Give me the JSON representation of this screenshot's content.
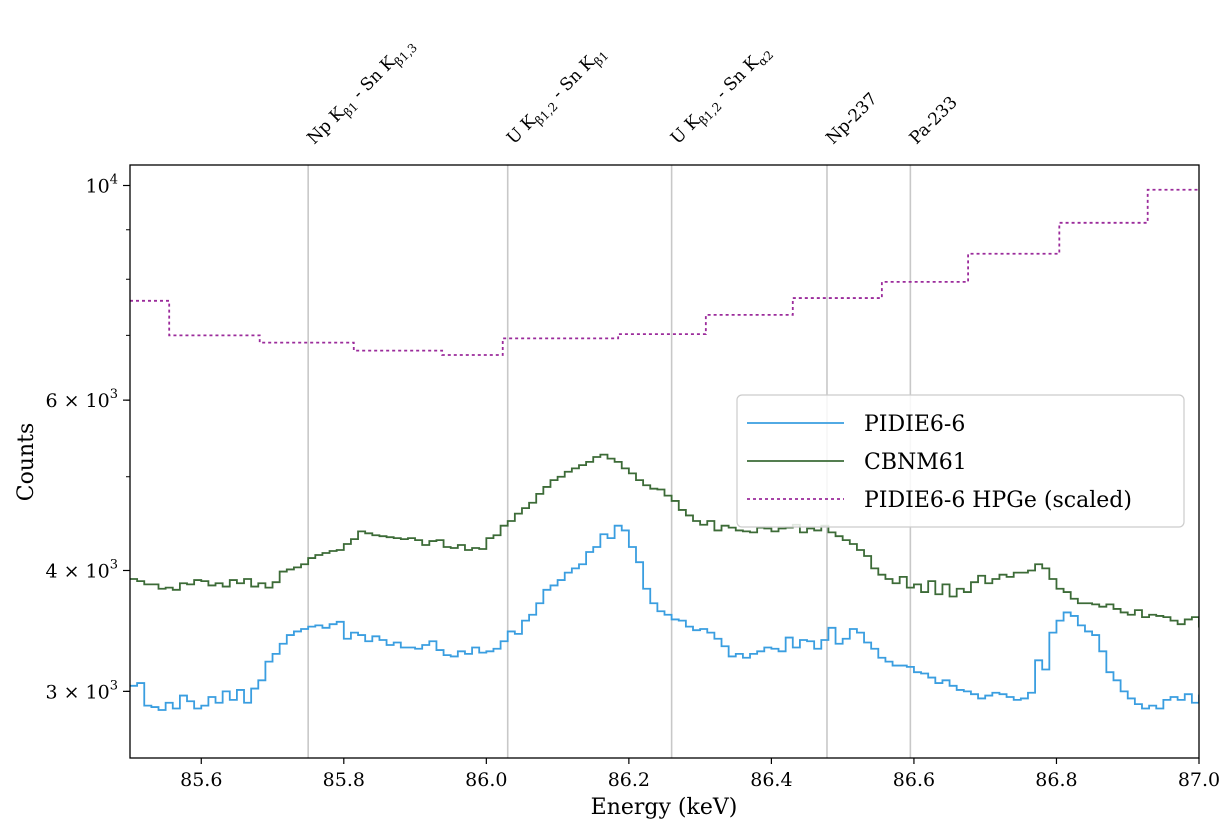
{
  "chart_data": {
    "type": "line",
    "xlabel": "Energy (keV)",
    "ylabel": "Counts",
    "xlim": [
      85.5,
      87.0
    ],
    "ylim": [
      2560,
      10500
    ],
    "yscale": "log",
    "xticks": [
      85.6,
      85.8,
      86.0,
      86.2,
      86.4,
      86.6,
      86.8,
      87.0
    ],
    "xtick_labels": [
      "85.6",
      "85.8",
      "86.0",
      "86.2",
      "86.4",
      "86.6",
      "86.8",
      "87.0"
    ],
    "yticks": [
      {
        "value": 3000,
        "base": "3",
        "exp": "3"
      },
      {
        "value": 4000,
        "base": "4",
        "exp": "3"
      },
      {
        "value": 6000,
        "base": "6",
        "exp": "3"
      },
      {
        "value": 10000,
        "base": "10",
        "exp": "4"
      }
    ],
    "legend_position": "center-right",
    "lines": [
      {
        "x": 85.75,
        "label_main": "Np K",
        "label_sub": "β1",
        "label_mid": " - Sn K",
        "label_sub2": "β1,3"
      },
      {
        "x": 86.03,
        "label_main": "U K",
        "label_sub": "β1,2",
        "label_mid": " - Sn K",
        "label_sub2": "β1"
      },
      {
        "x": 86.26,
        "label_main": "U K",
        "label_sub": "β1,2",
        "label_mid": " - Sn K",
        "label_sub2": "α2"
      },
      {
        "x": 86.478,
        "label_main": "Np-237",
        "label_sub": "",
        "label_mid": "",
        "label_sub2": ""
      },
      {
        "x": 86.595,
        "label_main": "Pa-233",
        "label_sub": "",
        "label_mid": "",
        "label_sub2": ""
      }
    ],
    "series": [
      {
        "name": "PIDIE6-6",
        "color": "#3a9ee0",
        "style": "solid",
        "x0": 85.5,
        "step": 0.01,
        "values": [
          3040,
          3060,
          2900,
          2890,
          2870,
          2920,
          2880,
          2970,
          2930,
          2880,
          2900,
          2960,
          2920,
          3000,
          2940,
          3010,
          2920,
          3020,
          3080,
          3220,
          3280,
          3360,
          3430,
          3460,
          3480,
          3500,
          3510,
          3490,
          3520,
          3540,
          3400,
          3450,
          3430,
          3380,
          3420,
          3390,
          3350,
          3370,
          3330,
          3330,
          3320,
          3350,
          3380,
          3310,
          3270,
          3260,
          3300,
          3280,
          3330,
          3290,
          3300,
          3320,
          3380,
          3460,
          3440,
          3550,
          3600,
          3700,
          3820,
          3860,
          3910,
          3980,
          4020,
          4060,
          4180,
          4230,
          4360,
          4320,
          4450,
          4400,
          4230,
          4080,
          3830,
          3700,
          3630,
          3600,
          3560,
          3550,
          3500,
          3470,
          3480,
          3450,
          3400,
          3340,
          3260,
          3280,
          3250,
          3280,
          3300,
          3330,
          3320,
          3300,
          3410,
          3330,
          3390,
          3380,
          3320,
          3390,
          3490,
          3360,
          3400,
          3480,
          3450,
          3370,
          3320,
          3250,
          3220,
          3190,
          3190,
          3180,
          3140,
          3130,
          3100,
          3060,
          3080,
          3040,
          3010,
          3000,
          2980,
          2950,
          2970,
          2990,
          2980,
          2960,
          2940,
          2950,
          2990,
          3230,
          3160,
          3450,
          3550,
          3620,
          3590,
          3510,
          3460,
          3430,
          3300,
          3140,
          3080,
          3000,
          2950,
          2910,
          2880,
          2900,
          2880,
          2940,
          2960,
          2940,
          2980,
          2920,
          2970,
          2920,
          2950,
          2920,
          2850,
          2820,
          2780,
          2770,
          2680,
          2680,
          2720,
          2690,
          2710,
          2770,
          2710,
          2780,
          2720,
          2720,
          2740,
          2720,
          2760,
          2740,
          2720,
          2710,
          2680,
          2750,
          2740,
          2780,
          2790,
          2870,
          2860,
          2900,
          2890,
          2880,
          2890,
          2930,
          2870,
          2880,
          2840,
          2880,
          2880,
          2870,
          2880,
          2860,
          2810,
          2830,
          2860,
          2870,
          2830,
          2860,
          2880,
          2870,
          2930,
          2880
        ]
      },
      {
        "name": "CBNM61",
        "color": "#3c6b37",
        "style": "solid",
        "x0": 85.5,
        "step": 0.01,
        "values": [
          3920,
          3900,
          3870,
          3870,
          3830,
          3840,
          3820,
          3880,
          3870,
          3910,
          3900,
          3860,
          3880,
          3850,
          3910,
          3880,
          3920,
          3850,
          3880,
          3840,
          3890,
          3990,
          4010,
          4030,
          4060,
          4120,
          4150,
          4170,
          4190,
          4200,
          4260,
          4310,
          4390,
          4370,
          4350,
          4340,
          4330,
          4320,
          4310,
          4320,
          4300,
          4250,
          4290,
          4300,
          4230,
          4220,
          4250,
          4200,
          4220,
          4210,
          4320,
          4350,
          4450,
          4500,
          4580,
          4640,
          4700,
          4800,
          4880,
          4960,
          5000,
          5060,
          5100,
          5140,
          5180,
          5240,
          5270,
          5220,
          5180,
          5100,
          5040,
          4960,
          4900,
          4860,
          4850,
          4780,
          4720,
          4620,
          4560,
          4500,
          4460,
          4500,
          4400,
          4450,
          4430,
          4400,
          4390,
          4380,
          4430,
          4420,
          4390,
          4420,
          4430,
          4460,
          4380,
          4420,
          4400,
          4450,
          4380,
          4340,
          4300,
          4260,
          4200,
          4140,
          4020,
          3960,
          3920,
          3880,
          3940,
          3840,
          3870,
          3800,
          3900,
          3780,
          3870,
          3760,
          3830,
          3800,
          3890,
          3950,
          3880,
          3920,
          3960,
          3940,
          3980,
          3980,
          4000,
          4060,
          4020,
          3920,
          3830,
          3800,
          3740,
          3700,
          3700,
          3690,
          3670,
          3690,
          3650,
          3620,
          3600,
          3640,
          3580,
          3600,
          3590,
          3580,
          3550,
          3520,
          3560,
          3580,
          3500,
          3560,
          3520,
          3530,
          3480,
          3510,
          3500,
          3520,
          3490,
          3430,
          3470,
          3450,
          3500,
          3430,
          3460,
          3490,
          3460,
          3500,
          3510,
          3490,
          3480,
          3500,
          3520,
          3500,
          3530,
          3540,
          3580,
          3570,
          3610,
          3630,
          3590,
          3640,
          3610,
          3580,
          3660,
          3620,
          3600,
          3560,
          3520,
          3530,
          3460,
          3480,
          3420,
          3410,
          3430,
          3440,
          3420,
          3450,
          3460,
          3480,
          3520,
          3500
        ]
      },
      {
        "name": "PIDIE6-6 HPGe (scaled)",
        "color": "#9b2b9b",
        "style": "dotted",
        "edges": [
          85.5,
          85.555,
          85.682,
          85.75,
          85.814,
          85.938,
          86.023,
          86.185,
          86.308,
          86.43,
          86.555,
          86.676,
          86.804,
          86.928,
          87.0
        ],
        "values": [
          7600,
          7000,
          6880,
          6880,
          6750,
          6680,
          6950,
          7020,
          7350,
          7650,
          7950,
          8500,
          9150,
          9900
        ]
      }
    ]
  }
}
